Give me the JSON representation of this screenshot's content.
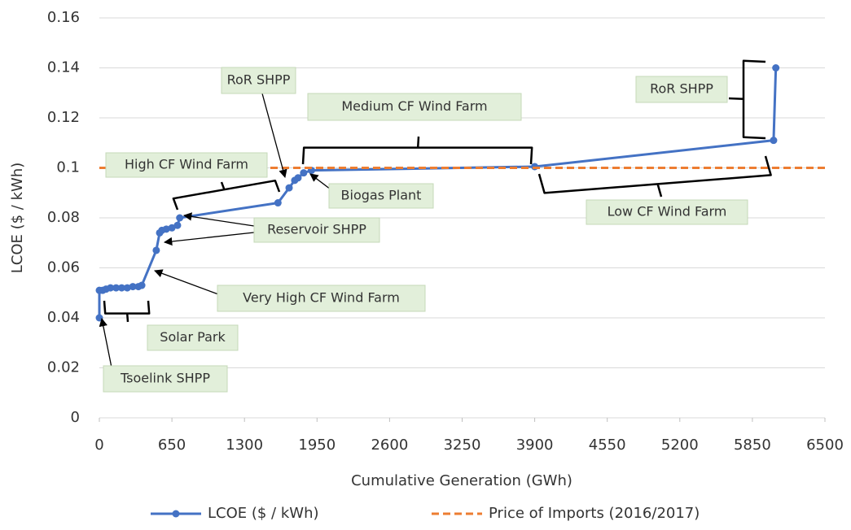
{
  "chart_data": {
    "type": "line",
    "x_label": "Cumulative Generation (GWh)",
    "y_label": "LCOE ($ / kWh)",
    "xlim": [
      0,
      6500
    ],
    "xticks": [
      0,
      650,
      1300,
      1950,
      2600,
      3250,
      3900,
      4550,
      5200,
      5850,
      6500
    ],
    "ylim": [
      0,
      0.16
    ],
    "yticks": [
      0,
      0.02,
      0.04,
      0.06,
      0.08,
      0.1,
      0.12,
      0.14,
      0.16
    ],
    "grid": true,
    "legend": "bottom",
    "series": [
      {
        "name": "LCOE ($ / kWh)",
        "color": "#4472c4",
        "style": "solid",
        "markers": true,
        "x": [
          0,
          0,
          30,
          60,
          100,
          150,
          200,
          250,
          300,
          350,
          380,
          510,
          540,
          560,
          600,
          650,
          700,
          720,
          1600,
          1700,
          1750,
          1780,
          1830,
          1900,
          3900,
          6040,
          6060
        ],
        "values": [
          0.04,
          0.051,
          0.051,
          0.0515,
          0.052,
          0.052,
          0.052,
          0.052,
          0.0525,
          0.0525,
          0.053,
          0.067,
          0.074,
          0.075,
          0.0755,
          0.076,
          0.077,
          0.08,
          0.086,
          0.092,
          0.095,
          0.096,
          0.098,
          0.099,
          0.1005,
          0.111,
          0.14
        ]
      },
      {
        "name": "Price of Imports (2016/2017)",
        "color": "#ed7d31",
        "style": "dashed",
        "markers": false,
        "x": [
          0,
          6500
        ],
        "values": [
          0.1,
          0.1
        ]
      }
    ],
    "annotations": [
      "RoR SHPP",
      "Medium CF Wind Farm",
      "High CF Wind Farm",
      "Biogas Plant",
      "Reservoir SHPP",
      "Low CF Wind Farm",
      "RoR SHPP",
      "Very High CF Wind Farm",
      "Solar Park",
      "Tsoelink SHPP"
    ]
  }
}
